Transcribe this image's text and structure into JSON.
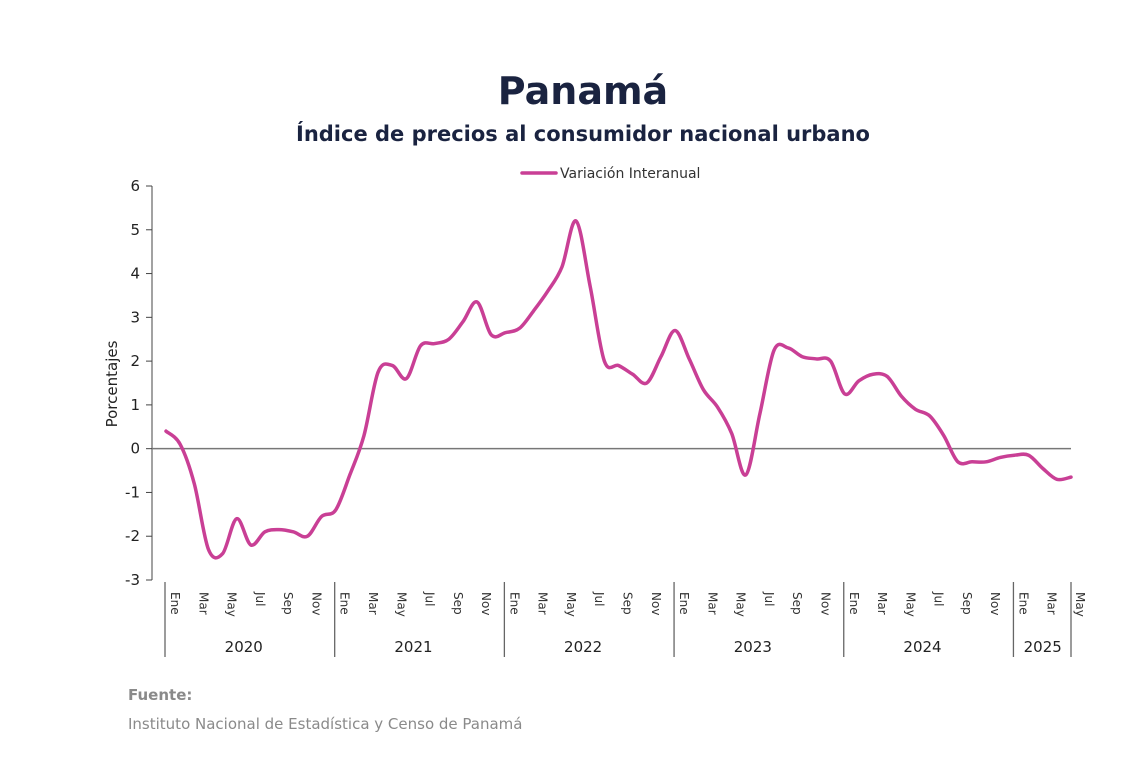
{
  "colors": {
    "series": "#c93f95",
    "negative_tick": "#c0392b",
    "axis": "#444444",
    "title": "#1a2340"
  },
  "chart_data": {
    "type": "line",
    "title": "Panamá",
    "subtitle": "Índice de precios al consumidor nacional urbano",
    "ylabel": "Porcentajes",
    "xlabel": "",
    "ylim": [
      -3,
      6
    ],
    "yticks": [
      "6",
      "5",
      "4",
      "3",
      "2",
      "1",
      "0",
      "-1",
      "-2",
      "-3"
    ],
    "grid": false,
    "legend_position": "top-center",
    "month_labels": [
      "Ene",
      "Mar",
      "May",
      "Jul",
      "Sep",
      "Nov"
    ],
    "years": [
      {
        "label": "2020",
        "months": 12
      },
      {
        "label": "2021",
        "months": 12
      },
      {
        "label": "2022",
        "months": 12
      },
      {
        "label": "2023",
        "months": 12
      },
      {
        "label": "2024",
        "months": 12
      },
      {
        "label": "2025",
        "months": 5
      }
    ],
    "series": [
      {
        "name": "Variación Interanual",
        "values": [
          0.4,
          0.1,
          -0.8,
          -2.3,
          -2.4,
          -1.6,
          -2.2,
          -1.9,
          -1.85,
          -1.9,
          -2.0,
          -1.55,
          -1.4,
          -0.6,
          0.3,
          1.75,
          1.9,
          1.6,
          2.35,
          2.4,
          2.5,
          2.9,
          3.35,
          2.6,
          2.65,
          2.75,
          3.15,
          3.6,
          4.15,
          5.2,
          3.7,
          2.0,
          1.9,
          1.7,
          1.5,
          2.1,
          2.7,
          2.05,
          1.35,
          0.95,
          0.35,
          -0.6,
          0.8,
          2.25,
          2.3,
          2.1,
          2.05,
          2.0,
          1.25,
          1.55,
          1.7,
          1.65,
          1.2,
          0.9,
          0.75,
          0.3,
          -0.3,
          -0.3,
          -0.3,
          -0.2,
          -0.15,
          -0.15,
          -0.45,
          -0.7,
          -0.65
        ]
      }
    ]
  },
  "source": {
    "title": "Fuente:",
    "text": "Instituto Nacional de Estadística y Censo de Panamá"
  }
}
